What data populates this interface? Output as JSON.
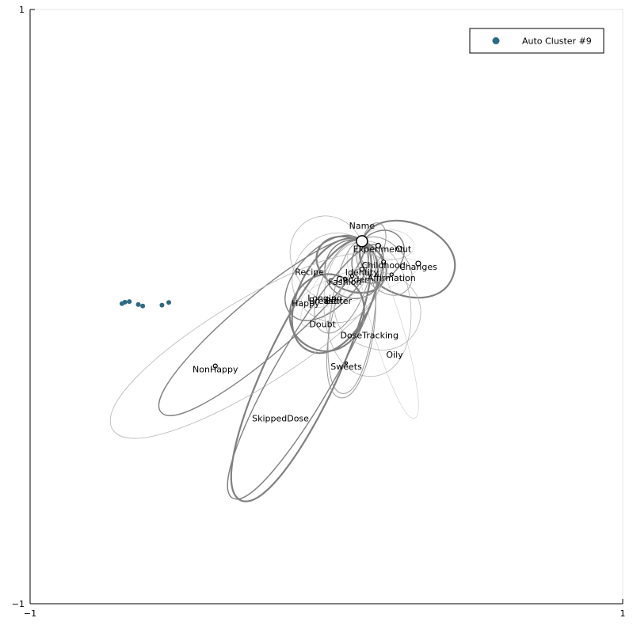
{
  "chart_data": {
    "type": "scatter",
    "xlim": [
      -1,
      1
    ],
    "ylim": [
      -1,
      1
    ],
    "grid": false,
    "legend_position": "top-right",
    "x_ticks": [
      -1,
      1
    ],
    "y_ticks": [
      -1,
      1
    ],
    "x_tick_labels": [
      "−1",
      "1"
    ],
    "y_tick_labels": [
      "−1",
      "1"
    ],
    "colors": {
      "cluster": "#2e6a85",
      "edge": "#808080",
      "node_stroke": "#000000",
      "axis": "#000000"
    },
    "series": [
      {
        "name": "Auto Cluster #9",
        "points": [
          {
            "x": -0.69,
            "y": 0.01
          },
          {
            "x": -0.68,
            "y": 0.015
          },
          {
            "x": -0.665,
            "y": 0.017
          },
          {
            "x": -0.635,
            "y": 0.007
          },
          {
            "x": -0.62,
            "y": 0.002
          },
          {
            "x": -0.555,
            "y": 0.005
          },
          {
            "x": -0.532,
            "y": 0.014
          }
        ]
      }
    ],
    "nodes": [
      {
        "label": "Name",
        "x": 0.12,
        "y": 0.22,
        "r": 7
      },
      {
        "label": "Out",
        "x": 0.26,
        "y": 0.205,
        "r": 0
      },
      {
        "label": "Experiment",
        "x": 0.175,
        "y": 0.205,
        "r": 3
      },
      {
        "label": "Childhood",
        "x": 0.193,
        "y": 0.15,
        "r": 2.5
      },
      {
        "label": "Changes",
        "x": 0.31,
        "y": 0.145,
        "r": 3
      },
      {
        "label": "Recipe",
        "x": -0.057,
        "y": 0.128,
        "r": 0
      },
      {
        "label": "Identity",
        "x": 0.12,
        "y": 0.126,
        "r": 2.5
      },
      {
        "label": "Affirmation",
        "x": 0.22,
        "y": 0.108,
        "r": 2
      },
      {
        "label": "Gender",
        "x": 0.087,
        "y": 0.103,
        "r": 2
      },
      {
        "label": "Fashion",
        "x": 0.063,
        "y": 0.094,
        "r": 2
      },
      {
        "label": "Longing",
        "x": -0.005,
        "y": 0.04,
        "r": 0
      },
      {
        "label": "Breast",
        "x": -0.012,
        "y": 0.03,
        "r": 0
      },
      {
        "label": "Better",
        "x": 0.04,
        "y": 0.03,
        "r": 0
      },
      {
        "label": "Happy",
        "x": -0.07,
        "y": 0.022,
        "r": 0
      },
      {
        "label": "Doubt",
        "x": -0.013,
        "y": -0.048,
        "r": 0
      },
      {
        "label": "DoseTracking",
        "x": 0.145,
        "y": -0.085,
        "r": 0
      },
      {
        "label": "Oily",
        "x": 0.23,
        "y": -0.15,
        "r": 0
      },
      {
        "label": "Sweets",
        "x": 0.067,
        "y": -0.19,
        "r": 1.5
      },
      {
        "label": "NonHappy",
        "x": -0.375,
        "y": -0.2,
        "r": 2.5
      },
      {
        "label": "SkippedDose",
        "x": -0.155,
        "y": -0.365,
        "r": 0
      }
    ]
  }
}
